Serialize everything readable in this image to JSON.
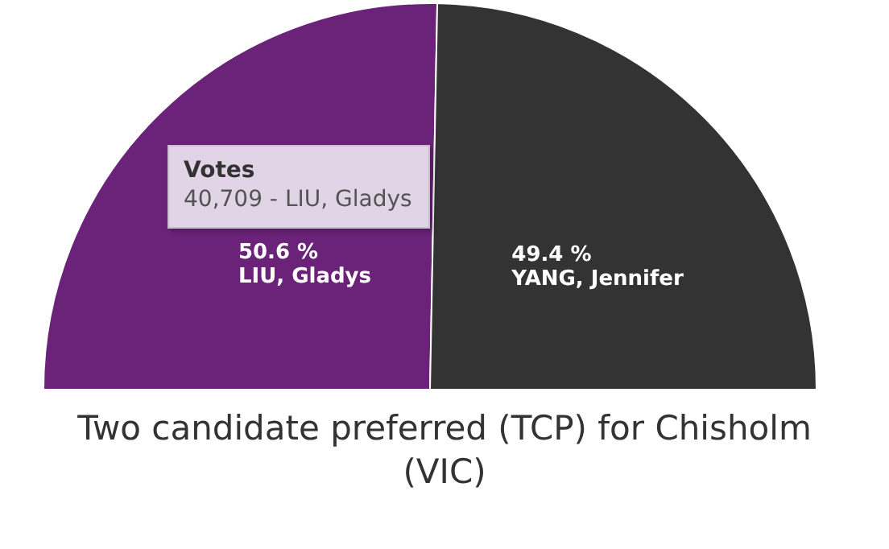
{
  "chart_data": {
    "type": "pie",
    "title": "Two candidate preferred (TCP) for Chisholm (VIC)",
    "categories": [
      "LIU, Gladys",
      "YANG, Jennifer"
    ],
    "values": [
      50.6,
      49.4
    ],
    "colors": [
      "#6b2379",
      "#333333"
    ],
    "value_labels": [
      "50.6 %",
      "49.4 %"
    ],
    "annotations": [
      "Votes",
      "40,709 - LIU, Gladys"
    ],
    "legend": false
  }
}
